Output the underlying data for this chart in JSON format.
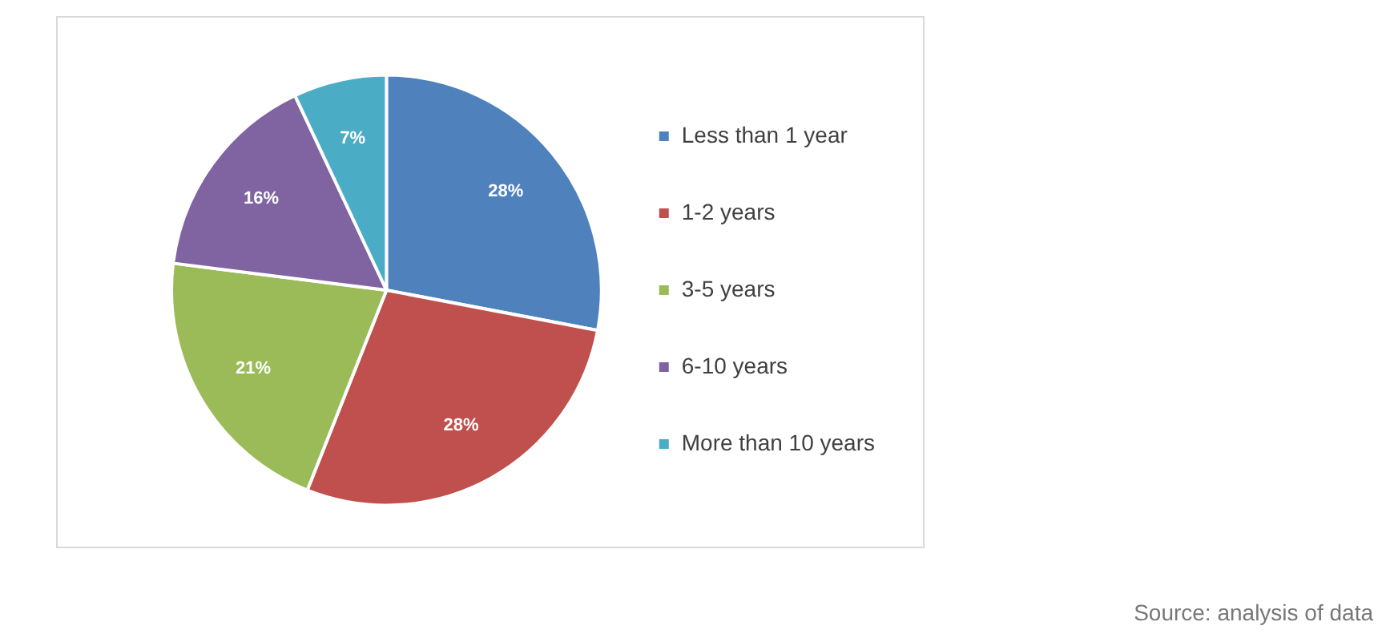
{
  "chart_data": {
    "type": "pie",
    "categories": [
      "Less than 1 year",
      "1-2 years",
      "3-5 years",
      "6-10 years",
      "More than 10 years"
    ],
    "values": [
      28,
      28,
      21,
      16,
      7
    ],
    "value_labels": [
      "28%",
      "28%",
      "21%",
      "16%",
      "7%"
    ],
    "colors": [
      "#4f81bd",
      "#c0504d",
      "#9bbb59",
      "#8064a2",
      "#4bacc6"
    ],
    "legend": "right",
    "annotations": [
      "Source: analysis of data"
    ]
  }
}
